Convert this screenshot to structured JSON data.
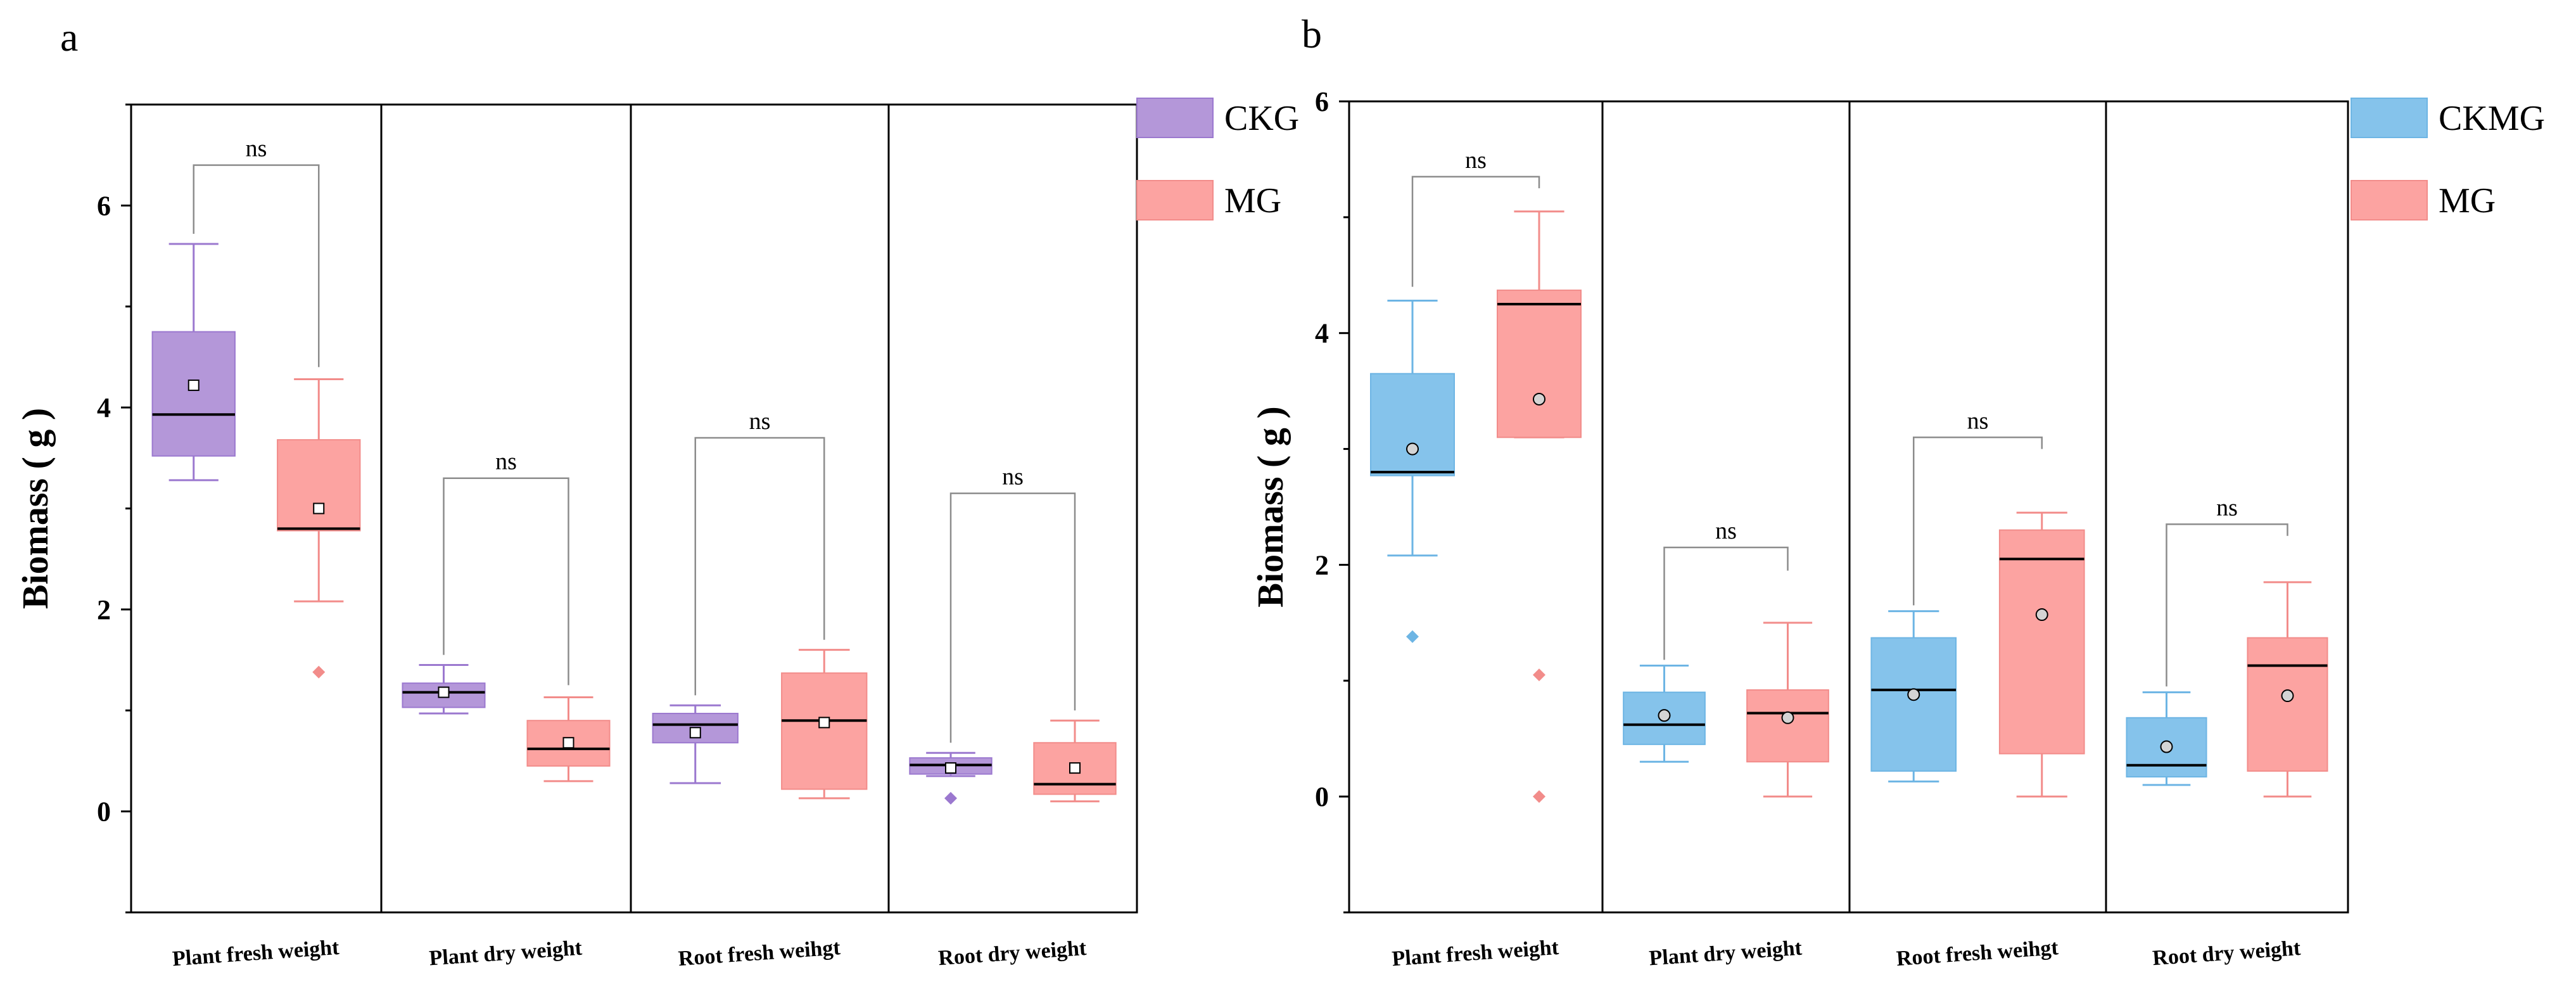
{
  "chart_data": [
    {
      "type": "box",
      "panel_label": "a",
      "ylabel": "Biomass ( g )",
      "ylim": [
        -1.0,
        7.0
      ],
      "yticks": [
        0,
        2,
        4,
        6
      ],
      "categories": [
        "Plant fresh weight",
        "Plant dry weight",
        "Root fresh weihgt",
        "Root dry weight"
      ],
      "legend_position": "top-right",
      "mean_marker": "square",
      "series": [
        {
          "name": "CKG",
          "color": "#b497d9",
          "edge": "#9b78cf",
          "boxes": [
            {
              "whisker_low": 3.28,
              "q1": 3.52,
              "median": 3.93,
              "q3": 4.75,
              "whisker_high": 5.62,
              "mean": 4.22,
              "outliers": []
            },
            {
              "whisker_low": 0.97,
              "q1": 1.03,
              "median": 1.18,
              "q3": 1.27,
              "whisker_high": 1.45,
              "mean": 1.18,
              "outliers": []
            },
            {
              "whisker_low": 0.28,
              "q1": 0.68,
              "median": 0.86,
              "q3": 0.97,
              "whisker_high": 1.05,
              "mean": 0.78,
              "outliers": []
            },
            {
              "whisker_low": 0.35,
              "q1": 0.37,
              "median": 0.46,
              "q3": 0.53,
              "whisker_high": 0.58,
              "mean": 0.43,
              "outliers": [
                0.13
              ]
            }
          ]
        },
        {
          "name": "MG",
          "color": "#fca3a1",
          "edge": "#f28c8a",
          "boxes": [
            {
              "whisker_low": 2.08,
              "q1": 2.78,
              "median": 2.8,
              "q3": 3.68,
              "whisker_high": 4.28,
              "mean": 3.0,
              "outliers": [
                1.38
              ]
            },
            {
              "whisker_low": 0.3,
              "q1": 0.45,
              "median": 0.62,
              "q3": 0.9,
              "whisker_high": 1.13,
              "mean": 0.68,
              "outliers": []
            },
            {
              "whisker_low": 0.13,
              "q1": 0.22,
              "median": 0.9,
              "q3": 1.37,
              "whisker_high": 1.6,
              "mean": 0.88,
              "outliers": []
            },
            {
              "whisker_low": 0.1,
              "q1": 0.17,
              "median": 0.27,
              "q3": 0.68,
              "whisker_high": 0.9,
              "mean": 0.43,
              "outliers": []
            }
          ]
        }
      ],
      "significance": [
        {
          "label": "ns",
          "y": 6.4,
          "drop_left": 5.72,
          "drop_right": 4.4
        },
        {
          "label": "ns",
          "y": 3.3,
          "drop_left": 1.55,
          "drop_right": 1.25
        },
        {
          "label": "ns",
          "y": 3.7,
          "drop_left": 1.15,
          "drop_right": 1.7
        },
        {
          "label": "ns",
          "y": 3.15,
          "drop_left": 0.68,
          "drop_right": 1.0
        }
      ]
    },
    {
      "type": "box",
      "panel_label": "b",
      "ylabel": "Biomass ( g )",
      "ylim": [
        -1.0,
        6.0
      ],
      "yticks": [
        0,
        2,
        4,
        6
      ],
      "categories": [
        "Plant fresh weight",
        "Plant dry weight",
        "Root fresh weihgt",
        "Root dry weight"
      ],
      "legend_position": "top-right",
      "mean_marker": "circle",
      "series": [
        {
          "name": "CKMG",
          "color": "#85c3eb",
          "edge": "#6db5e4",
          "boxes": [
            {
              "whisker_low": 2.08,
              "q1": 2.77,
              "median": 2.8,
              "q3": 3.65,
              "whisker_high": 4.28,
              "mean": 3.0,
              "outliers": [
                1.38
              ]
            },
            {
              "whisker_low": 0.3,
              "q1": 0.45,
              "median": 0.62,
              "q3": 0.9,
              "whisker_high": 1.13,
              "mean": 0.7,
              "outliers": []
            },
            {
              "whisker_low": 0.13,
              "q1": 0.22,
              "median": 0.92,
              "q3": 1.37,
              "whisker_high": 1.6,
              "mean": 0.88,
              "outliers": []
            },
            {
              "whisker_low": 0.1,
              "q1": 0.17,
              "median": 0.27,
              "q3": 0.68,
              "whisker_high": 0.9,
              "mean": 0.43,
              "outliers": []
            }
          ]
        },
        {
          "name": "MG",
          "color": "#fca3a1",
          "edge": "#f28c8a",
          "boxes": [
            {
              "whisker_low": 3.1,
              "q1": 3.1,
              "median": 4.25,
              "q3": 4.37,
              "whisker_high": 5.05,
              "mean": 3.43,
              "outliers": [
                1.05,
                0.0
              ]
            },
            {
              "whisker_low": 0.0,
              "q1": 0.3,
              "median": 0.72,
              "q3": 0.92,
              "whisker_high": 1.5,
              "mean": 0.68,
              "outliers": []
            },
            {
              "whisker_low": 0.0,
              "q1": 0.37,
              "median": 2.05,
              "q3": 2.3,
              "whisker_high": 2.45,
              "mean": 1.57,
              "outliers": []
            },
            {
              "whisker_low": 0.0,
              "q1": 0.22,
              "median": 1.13,
              "q3": 1.37,
              "whisker_high": 1.85,
              "mean": 0.87,
              "outliers": []
            }
          ]
        }
      ],
      "significance": [
        {
          "label": "ns",
          "y": 5.35,
          "drop_left": 4.4,
          "drop_right": 5.25
        },
        {
          "label": "ns",
          "y": 2.15,
          "drop_left": 1.18,
          "drop_right": 1.95
        },
        {
          "label": "ns",
          "y": 3.1,
          "drop_left": 1.65,
          "drop_right": 3.0
        },
        {
          "label": "ns",
          "y": 2.35,
          "drop_left": 0.95,
          "drop_right": 2.25
        }
      ]
    }
  ]
}
